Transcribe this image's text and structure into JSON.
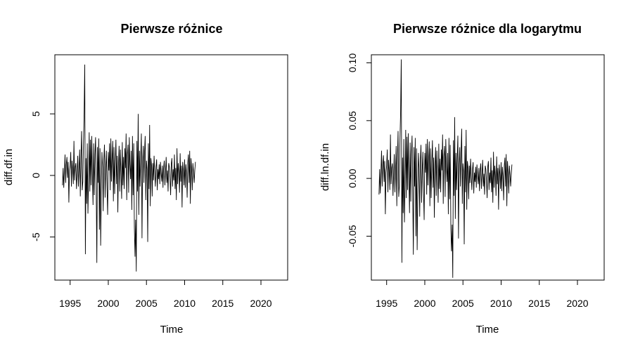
{
  "chart_data": [
    {
      "type": "line",
      "title": "Pierwsze różnice",
      "xlabel": "Time",
      "ylabel": "diff.df.in",
      "xlim": [
        1993.0,
        2023.5
      ],
      "ylim": [
        -8.5,
        9.8
      ],
      "x_ticks": [
        1995,
        2000,
        2005,
        2010,
        2015,
        2020
      ],
      "x_tick_labels": [
        "1995",
        "2000",
        "2005",
        "2010",
        "2015",
        "2020"
      ],
      "y_ticks": [
        -5,
        0,
        5
      ],
      "y_tick_labels": [
        "-5",
        "0",
        "5"
      ],
      "series": [
        {
          "color": "#000000",
          "start": 1994.0,
          "step": 0.08333,
          "values": [
            -0.8,
            0.6,
            -1.0,
            0.3,
            1.7,
            -0.6,
            0.9,
            1.5,
            -0.2,
            1.1,
            -2.2,
            0.4,
            0.8,
            1.9,
            -0.9,
            1.2,
            0.5,
            -0.7,
            2.8,
            -0.4,
            0.7,
            1.0,
            -1.1,
            0.2,
            1.6,
            -0.9,
            0.5,
            2.1,
            -1.7,
            1.3,
            3.6,
            -1.2,
            -0.5,
            2.7,
            5.0,
            9.0,
            -6.4,
            1.4,
            -2.3,
            2.6,
            -3.1,
            -0.4,
            3.5,
            -1.3,
            2.9,
            -0.8,
            3.2,
            0.1,
            -2.4,
            2.6,
            -1.6,
            1.7,
            3.1,
            -0.9,
            -7.1,
            2.3,
            -0.6,
            3.0,
            -4.4,
            2.2,
            -5.7,
            -1.4,
            1.9,
            0.7,
            -2.9,
            1.3,
            2.5,
            -1.8,
            0.6,
            2.0,
            -1.0,
            -3.2,
            1.9,
            0.4,
            2.6,
            -1.2,
            3.0,
            -0.5,
            1.4,
            2.8,
            -2.1,
            2.3,
            -1.5,
            1.1,
            2.9,
            -0.7,
            1.6,
            -3.0,
            0.8,
            2.4,
            -1.3,
            2.1,
            0.3,
            -1.9,
            2.7,
            -0.8,
            1.5,
            -1.1,
            2.2,
            0.6,
            3.4,
            -2.0,
            1.7,
            2.5,
            -1.4,
            3.1,
            0.9,
            -0.3,
            2.0,
            -2.8,
            3.2,
            -1.6,
            2.6,
            -4.2,
            -6.6,
            -3.6,
            -7.8,
            2.8,
            -1.3,
            5.0,
            -3.2,
            2.0,
            -0.9,
            1.5,
            3.4,
            -5.1,
            1.1,
            2.4,
            -0.6,
            1.9,
            3.2,
            -2.0,
            1.2,
            0.5,
            -5.4,
            2.6,
            -1.1,
            4.1,
            -2.5,
            1.4,
            0.8,
            -1.7,
            1.0,
            -0.4,
            1.6,
            0.2,
            -0.9,
            0.7,
            1.3,
            -1.2,
            0.5,
            -0.3,
            0.9,
            -0.7,
            1.1,
            0.2,
            -0.5,
            0.8,
            -1.0,
            0.6,
            1.2,
            -0.8,
            0.3,
            1.5,
            -0.6,
            0.4,
            -1.3,
            1.0,
            0.7,
            -0.2,
            -1.6,
            0.9,
            1.4,
            -0.9,
            0.5,
            -0.4,
            1.7,
            -1.1,
            0.6,
            -2.0,
            2.2,
            -0.7,
            1.0,
            0.3,
            -1.4,
            1.8,
            -0.5,
            0.8,
            -2.6,
            1.1,
            0.4,
            -0.8,
            1.3,
            -1.0,
            0.9,
            0.2,
            -1.8,
            1.0,
            1.7,
            -0.6,
            2.0,
            -2.3,
            1.4,
            0.5,
            -1.2,
            1.0,
            0.3,
            -0.6,
            0.4,
            1.1
          ]
        }
      ]
    },
    {
      "type": "line",
      "title": "Pierwsze różnice dla logarytmu",
      "xlabel": "Time",
      "ylabel": "diff.ln.df.in",
      "xlim": [
        1993.0,
        2023.5
      ],
      "ylim": [
        -0.088,
        0.107
      ],
      "x_ticks": [
        1995,
        2000,
        2005,
        2010,
        2015,
        2020
      ],
      "x_tick_labels": [
        "1995",
        "2000",
        "2005",
        "2010",
        "2015",
        "2020"
      ],
      "y_ticks": [
        -0.05,
        0.0,
        0.05,
        0.1
      ],
      "y_tick_labels": [
        "-0.05",
        "0.00",
        "0.05",
        "0.10"
      ],
      "series": [
        {
          "color": "#000000",
          "start": 1994.0,
          "step": 0.08333,
          "values": [
            -0.014,
            0.008,
            -0.013,
            0.004,
            0.024,
            -0.007,
            0.012,
            0.02,
            -0.003,
            0.015,
            -0.031,
            0.005,
            0.011,
            0.025,
            -0.012,
            0.016,
            0.007,
            -0.01,
            0.038,
            -0.005,
            0.009,
            0.013,
            -0.015,
            0.003,
            0.021,
            -0.012,
            0.007,
            0.028,
            -0.024,
            0.017,
            0.041,
            -0.016,
            -0.007,
            0.035,
            0.058,
            0.103,
            -0.073,
            0.018,
            -0.03,
            0.034,
            -0.038,
            -0.005,
            0.042,
            -0.017,
            0.036,
            -0.01,
            0.039,
            0.001,
            -0.03,
            0.031,
            -0.02,
            0.021,
            0.037,
            -0.011,
            -0.066,
            0.027,
            -0.007,
            0.035,
            -0.05,
            0.026,
            -0.062,
            -0.016,
            0.022,
            0.008,
            -0.033,
            0.015,
            0.029,
            -0.021,
            0.007,
            0.023,
            -0.012,
            -0.036,
            0.022,
            0.005,
            0.03,
            -0.014,
            0.034,
            -0.006,
            0.016,
            0.032,
            -0.024,
            0.026,
            -0.017,
            0.013,
            0.033,
            -0.008,
            0.018,
            -0.034,
            0.009,
            0.027,
            -0.015,
            0.024,
            0.003,
            -0.021,
            0.03,
            -0.009,
            0.017,
            -0.012,
            0.025,
            0.007,
            0.038,
            -0.022,
            0.019,
            0.028,
            -0.016,
            0.034,
            0.01,
            -0.003,
            0.022,
            -0.031,
            0.035,
            -0.018,
            0.029,
            -0.044,
            -0.063,
            -0.04,
            -0.086,
            0.033,
            -0.015,
            0.053,
            -0.035,
            0.022,
            -0.01,
            0.017,
            0.037,
            -0.052,
            0.012,
            0.027,
            -0.007,
            0.021,
            0.043,
            -0.022,
            0.013,
            0.006,
            -0.057,
            0.028,
            -0.012,
            0.042,
            -0.027,
            0.015,
            0.009,
            -0.018,
            0.011,
            -0.004,
            0.017,
            0.002,
            -0.01,
            0.008,
            0.014,
            -0.013,
            0.005,
            -0.003,
            0.01,
            -0.008,
            0.012,
            0.002,
            -0.005,
            0.009,
            -0.011,
            0.007,
            0.013,
            -0.009,
            0.003,
            0.016,
            -0.007,
            0.004,
            -0.014,
            0.011,
            0.008,
            -0.002,
            -0.017,
            0.01,
            0.015,
            -0.01,
            0.005,
            -0.004,
            0.018,
            -0.012,
            0.007,
            -0.021,
            0.023,
            -0.008,
            0.011,
            0.003,
            -0.015,
            0.019,
            -0.005,
            0.009,
            -0.027,
            0.012,
            0.004,
            -0.009,
            0.014,
            -0.011,
            0.01,
            0.002,
            -0.019,
            0.011,
            0.018,
            -0.007,
            0.021,
            -0.024,
            0.015,
            0.005,
            -0.013,
            0.011,
            0.003,
            -0.007,
            0.004,
            0.012
          ]
        }
      ]
    }
  ]
}
